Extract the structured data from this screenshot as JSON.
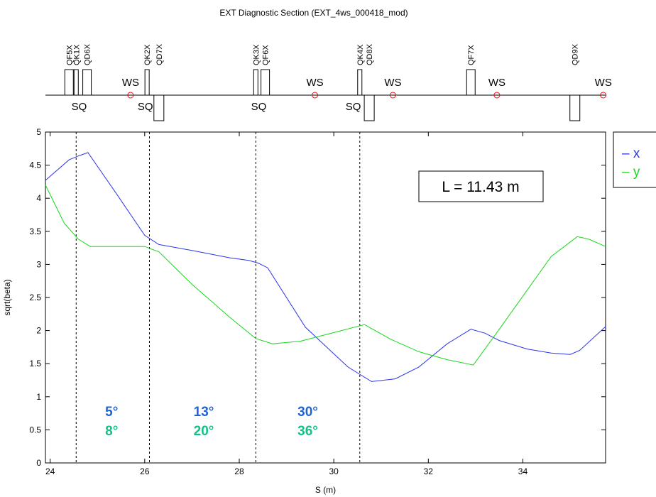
{
  "title": "EXT Diagnostic Section (EXT_4ws_000418_mod)",
  "colors": {
    "x": "#2a35e8",
    "y": "#16d81c",
    "phase_x": "#1e64d8",
    "phase_y": "#14c08a",
    "ws_marker": "#ff0000"
  },
  "lattice": {
    "focusing": [
      {
        "name": "QF5X",
        "s": 24.4
      },
      {
        "name": "QK1X",
        "s": 24.55
      },
      {
        "name": "QD6X",
        "s": 24.78
      },
      {
        "name": "QK2X",
        "s": 26.05
      },
      {
        "name": "QK3X",
        "s": 28.35
      },
      {
        "name": "QF6X",
        "s": 28.55
      },
      {
        "name": "QK4X",
        "s": 30.55
      },
      {
        "name": "QF7X",
        "s": 32.9
      }
    ],
    "defocusing": [
      {
        "name": "QD7X",
        "s": 26.3
      },
      {
        "name": "QD8X",
        "s": 30.75
      },
      {
        "name": "QD9X",
        "s": 35.1
      }
    ],
    "ws": [
      {
        "label": "WS",
        "s": 25.7
      },
      {
        "label": "WS",
        "s": 29.6
      },
      {
        "label": "WS",
        "s": 31.25
      },
      {
        "label": "WS",
        "s": 33.45
      },
      {
        "label": "WS",
        "s": 35.7
      }
    ],
    "sq": [
      {
        "label": "SQ",
        "s": 24.6
      },
      {
        "label": "SQ",
        "s": 26.0
      },
      {
        "label": "SQ",
        "s": 28.4
      },
      {
        "label": "SQ",
        "s": 30.4
      }
    ]
  },
  "chart_data": {
    "type": "line",
    "title": "EXT Diagnostic Section (EXT_4ws_000418_mod)",
    "xlabel": "S (m)",
    "ylabel": "sqrt(beta)",
    "xlim": [
      23.9,
      35.75
    ],
    "ylim": [
      0,
      5
    ],
    "xticks": [
      "24",
      "26",
      "28",
      "30",
      "32",
      "34"
    ],
    "yticks": [
      "0",
      "0.5",
      "1",
      "1.5",
      "2",
      "2.5",
      "3",
      "3.5",
      "4",
      "4.5",
      "5"
    ],
    "grid": false,
    "legend_position": "outside-top-right",
    "series": [
      {
        "name": "x",
        "x": [
          23.9,
          24.4,
          24.6,
          24.8,
          25.4,
          26.0,
          26.3,
          27.0,
          27.8,
          28.2,
          28.4,
          28.6,
          29.4,
          30.3,
          30.8,
          31.3,
          31.8,
          32.4,
          32.9,
          33.2,
          33.5,
          34.1,
          34.6,
          35.0,
          35.2,
          35.75
        ],
        "y": [
          4.27,
          4.58,
          4.64,
          4.69,
          4.07,
          3.44,
          3.3,
          3.21,
          3.1,
          3.06,
          3.02,
          2.95,
          2.05,
          1.45,
          1.23,
          1.27,
          1.45,
          1.8,
          2.02,
          1.96,
          1.85,
          1.72,
          1.66,
          1.64,
          1.7,
          2.06
        ]
      },
      {
        "name": "y",
        "x": [
          23.9,
          24.3,
          24.6,
          24.85,
          25.3,
          26.0,
          26.3,
          27.0,
          27.8,
          28.35,
          28.7,
          29.3,
          30.0,
          30.65,
          31.2,
          31.8,
          32.4,
          32.95,
          33.4,
          34.0,
          34.6,
          35.15,
          35.4,
          35.75
        ],
        "y": [
          4.2,
          3.62,
          3.38,
          3.27,
          3.27,
          3.27,
          3.19,
          2.7,
          2.2,
          1.88,
          1.8,
          1.84,
          1.97,
          2.09,
          1.87,
          1.68,
          1.56,
          1.48,
          1.92,
          2.52,
          3.12,
          3.42,
          3.38,
          3.27
        ]
      }
    ],
    "vlines": [
      24.55,
      26.1,
      28.35,
      30.55
    ],
    "phase_labels": [
      {
        "x_label": "5°",
        "y_label": "8°",
        "s": 25.3
      },
      {
        "x_label": "13°",
        "y_label": "20°",
        "s": 27.25
      },
      {
        "x_label": "30°",
        "y_label": "36°",
        "s": 29.45
      }
    ],
    "annotation": "L = 11.43 m",
    "legend": [
      {
        "symbol": "–",
        "label": "x"
      },
      {
        "symbol": "–",
        "label": "y"
      }
    ]
  }
}
